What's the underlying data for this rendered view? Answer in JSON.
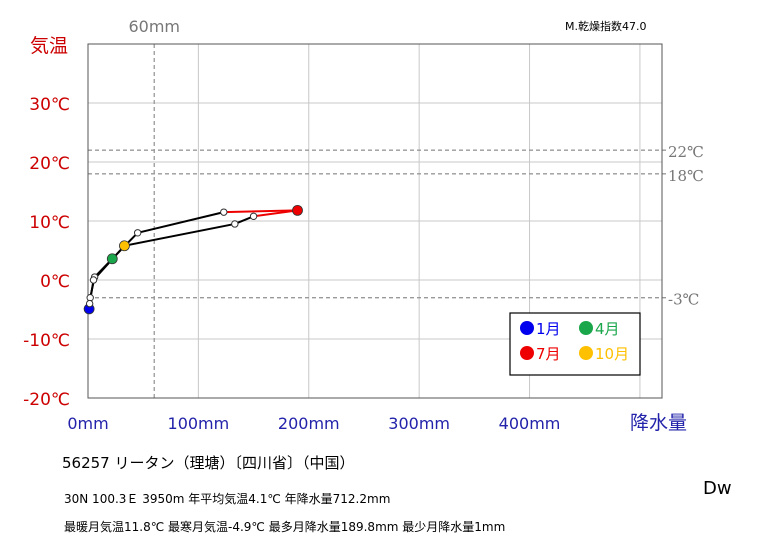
{
  "chart_data": {
    "type": "line",
    "xlabel": "降水量",
    "ylabel": "気温",
    "xlim": [
      0,
      520
    ],
    "ylim": [
      -20,
      40
    ],
    "x_ticks": [
      "0mm",
      "100mm",
      "200mm",
      "300mm",
      "400mm"
    ],
    "x_tick_values": [
      0,
      100,
      200,
      300,
      400
    ],
    "y_ticks": [
      "-20℃",
      "-10℃",
      "0℃",
      "10℃",
      "20℃",
      "30℃"
    ],
    "y_tick_values": [
      -20,
      -10,
      0,
      10,
      20,
      30
    ],
    "grid": true,
    "reference_lines": [
      {
        "axis": "x",
        "value": 60,
        "label": "60mm"
      },
      {
        "axis": "y",
        "value": 22,
        "label": "22℃"
      },
      {
        "axis": "y",
        "value": 18,
        "label": "18℃"
      },
      {
        "axis": "y",
        "value": -3,
        "label": "-3℃"
      }
    ],
    "months": [
      {
        "month": 1,
        "precip": 1,
        "temp": -4.9
      },
      {
        "month": 2,
        "precip": 2,
        "temp": -3.0
      },
      {
        "month": 3,
        "precip": 6,
        "temp": 0.5
      },
      {
        "month": 4,
        "precip": 22,
        "temp": 3.6
      },
      {
        "month": 5,
        "precip": 45,
        "temp": 8.0
      },
      {
        "month": 6,
        "precip": 123,
        "temp": 11.5
      },
      {
        "month": 7,
        "precip": 189.8,
        "temp": 11.8
      },
      {
        "month": 8,
        "precip": 150,
        "temp": 10.8
      },
      {
        "month": 9,
        "precip": 133,
        "temp": 9.5
      },
      {
        "month": 10,
        "precip": 33,
        "temp": 5.8
      },
      {
        "month": 11,
        "precip": 5,
        "temp": 0.0
      },
      {
        "month": 12,
        "precip": 1.5,
        "temp": -4.0
      }
    ],
    "highlight": [
      {
        "month": 1,
        "label": "1月",
        "color": "#0000ee"
      },
      {
        "month": 4,
        "label": "4月",
        "color": "#1aa64a"
      },
      {
        "month": 7,
        "label": "7月",
        "color": "#ee0000"
      },
      {
        "month": 10,
        "label": "10月",
        "color": "#ffc000"
      }
    ],
    "line_colors": {
      "normal": "#000000",
      "wettest_segment": "#ee0000"
    }
  },
  "aridity_index": "M.乾燥指数47.0",
  "station_title": "56257  リータン（理塘）〔四川省〕（中国）",
  "meta_line1": "30N   100.3Ｅ 3950m   年平均気温4.1℃ 年降水量712.2mm",
  "meta_line2": "最暖月気温11.8℃ 最寒月気温-4.9℃ 最多月降水量189.8mm 最少月降水量1mm",
  "koppen": "Dw",
  "colors": {
    "temp_axis": "#cc0000",
    "precip_axis": "#2222aa",
    "ref": "#999999",
    "grid": "#c8c8c8"
  }
}
